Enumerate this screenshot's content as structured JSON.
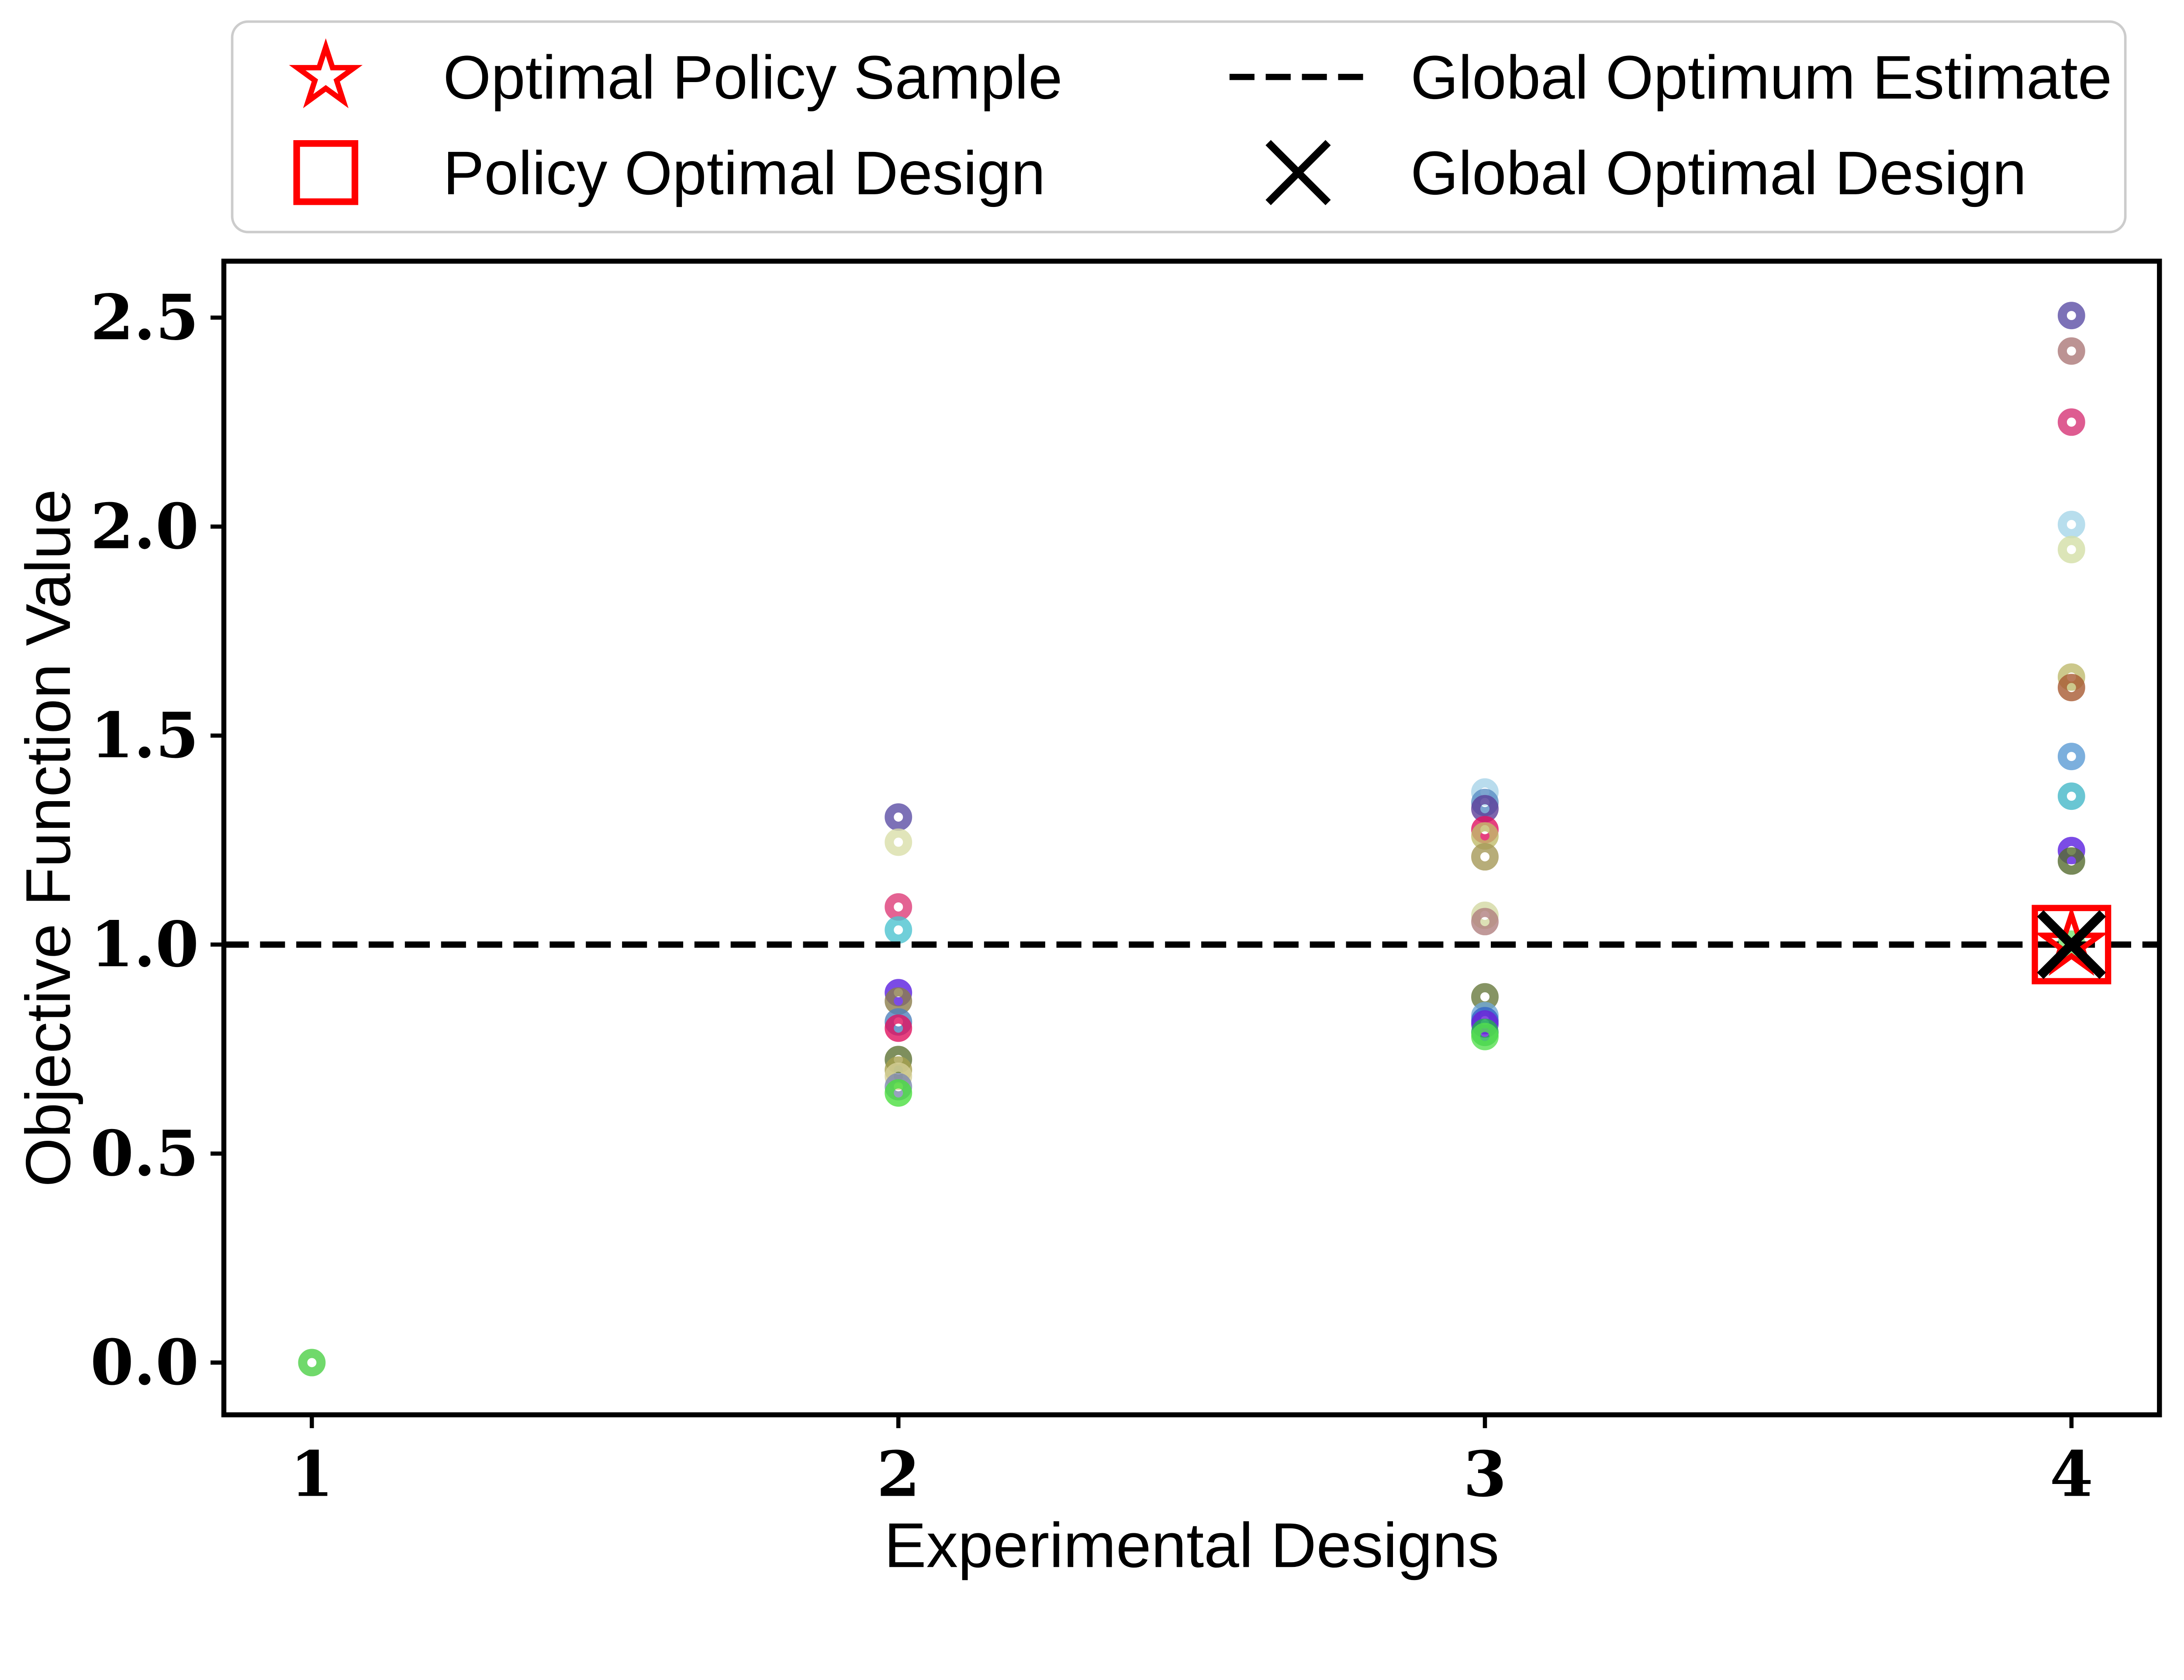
{
  "figure": {
    "background": "#ffffff"
  },
  "legend": {
    "border_color": "#cccccc",
    "items": [
      {
        "label": "Optimal Policy Sample",
        "marker": "red-star-outline",
        "color": "#ff0000"
      },
      {
        "label": "Policy Optimal Design",
        "marker": "red-square-outline",
        "color": "#ff0000"
      },
      {
        "label": "Global Optimum Estimate",
        "marker": "black-dashed-line",
        "color": "#000000"
      },
      {
        "label": "Global Optimal Design",
        "marker": "black-x",
        "color": "#000000"
      }
    ]
  },
  "chart_data": {
    "type": "scatter",
    "title": "",
    "xlabel": "Experimental Designs",
    "ylabel": "Objective Function Value",
    "xticks": [
      "1",
      "2",
      "3",
      "4"
    ],
    "yticks": [
      "0.0",
      "0.5",
      "1.0",
      "1.5",
      "2.0",
      "2.5"
    ],
    "xlim": [
      0.85,
      4.15
    ],
    "ylim": [
      -0.125,
      2.635
    ],
    "grid": false,
    "legend_position": "upper center, 2 columns",
    "marker_style": "ring",
    "marker_opacity": 0.8,
    "global_optimum_estimate_y": 1.0,
    "optimal_policy_sample": {
      "x": 4,
      "y": 1.0,
      "color": "#86e57f"
    },
    "policy_optimal_design": {
      "x": 4,
      "y": 1.0,
      "color": "#ff0000"
    },
    "global_optimal_design": {
      "x": 4,
      "y": 1.0,
      "color": "#000000"
    },
    "points": [
      {
        "x": 1,
        "y": 0.0,
        "color": "#4ccf46"
      },
      {
        "x": 2,
        "y": 1.305,
        "color": "#5b4ea5"
      },
      {
        "x": 2,
        "y": 1.245,
        "color": "#d9dfa9"
      },
      {
        "x": 2,
        "y": 1.09,
        "color": "#dd3c78"
      },
      {
        "x": 2,
        "y": 1.035,
        "color": "#4cc3cf"
      },
      {
        "x": 2,
        "y": 0.885,
        "color": "#5a1ee0"
      },
      {
        "x": 2,
        "y": 0.865,
        "color": "#8b7d4b"
      },
      {
        "x": 2,
        "y": 0.815,
        "color": "#4f81bd"
      },
      {
        "x": 2,
        "y": 0.8,
        "color": "#e0115f"
      },
      {
        "x": 2,
        "y": 0.725,
        "color": "#5e7334"
      },
      {
        "x": 2,
        "y": 0.7,
        "color": "#a6a04f"
      },
      {
        "x": 2,
        "y": 0.685,
        "color": "#d5d097"
      },
      {
        "x": 2,
        "y": 0.66,
        "color": "#7d89b0"
      },
      {
        "x": 2,
        "y": 0.645,
        "color": "#4ade3f"
      },
      {
        "x": 3,
        "y": 1.365,
        "color": "#a8d3e8"
      },
      {
        "x": 3,
        "y": 1.34,
        "color": "#5b8ec4"
      },
      {
        "x": 3,
        "y": 1.325,
        "color": "#5d3f99"
      },
      {
        "x": 3,
        "y": 1.275,
        "color": "#e0115f"
      },
      {
        "x": 3,
        "y": 1.26,
        "color": "#c0bc6a"
      },
      {
        "x": 3,
        "y": 1.21,
        "color": "#a59958"
      },
      {
        "x": 3,
        "y": 1.07,
        "color": "#d3d8a2"
      },
      {
        "x": 3,
        "y": 1.055,
        "color": "#b08080"
      },
      {
        "x": 3,
        "y": 0.875,
        "color": "#68793d"
      },
      {
        "x": 3,
        "y": 0.83,
        "color": "#6fa8d6"
      },
      {
        "x": 3,
        "y": 0.818,
        "color": "#3464c8"
      },
      {
        "x": 3,
        "y": 0.81,
        "color": "#6a1fd8"
      },
      {
        "x": 3,
        "y": 0.79,
        "color": "#22b24c"
      },
      {
        "x": 3,
        "y": 0.78,
        "color": "#55e04f"
      },
      {
        "x": 4,
        "y": 2.505,
        "color": "#5b4ea5"
      },
      {
        "x": 4,
        "y": 2.42,
        "color": "#ab7878"
      },
      {
        "x": 4,
        "y": 2.25,
        "color": "#d63376"
      },
      {
        "x": 4,
        "y": 2.005,
        "color": "#a6d6e8"
      },
      {
        "x": 4,
        "y": 1.945,
        "color": "#d3dfa6"
      },
      {
        "x": 4,
        "y": 1.64,
        "color": "#bfba6e"
      },
      {
        "x": 4,
        "y": 1.615,
        "color": "#a85a32"
      },
      {
        "x": 4,
        "y": 1.45,
        "color": "#5b9bd5"
      },
      {
        "x": 4,
        "y": 1.355,
        "color": "#45b8c8"
      },
      {
        "x": 4,
        "y": 1.225,
        "color": "#5a1ee0"
      },
      {
        "x": 4,
        "y": 1.2,
        "color": "#556b2f"
      }
    ]
  }
}
